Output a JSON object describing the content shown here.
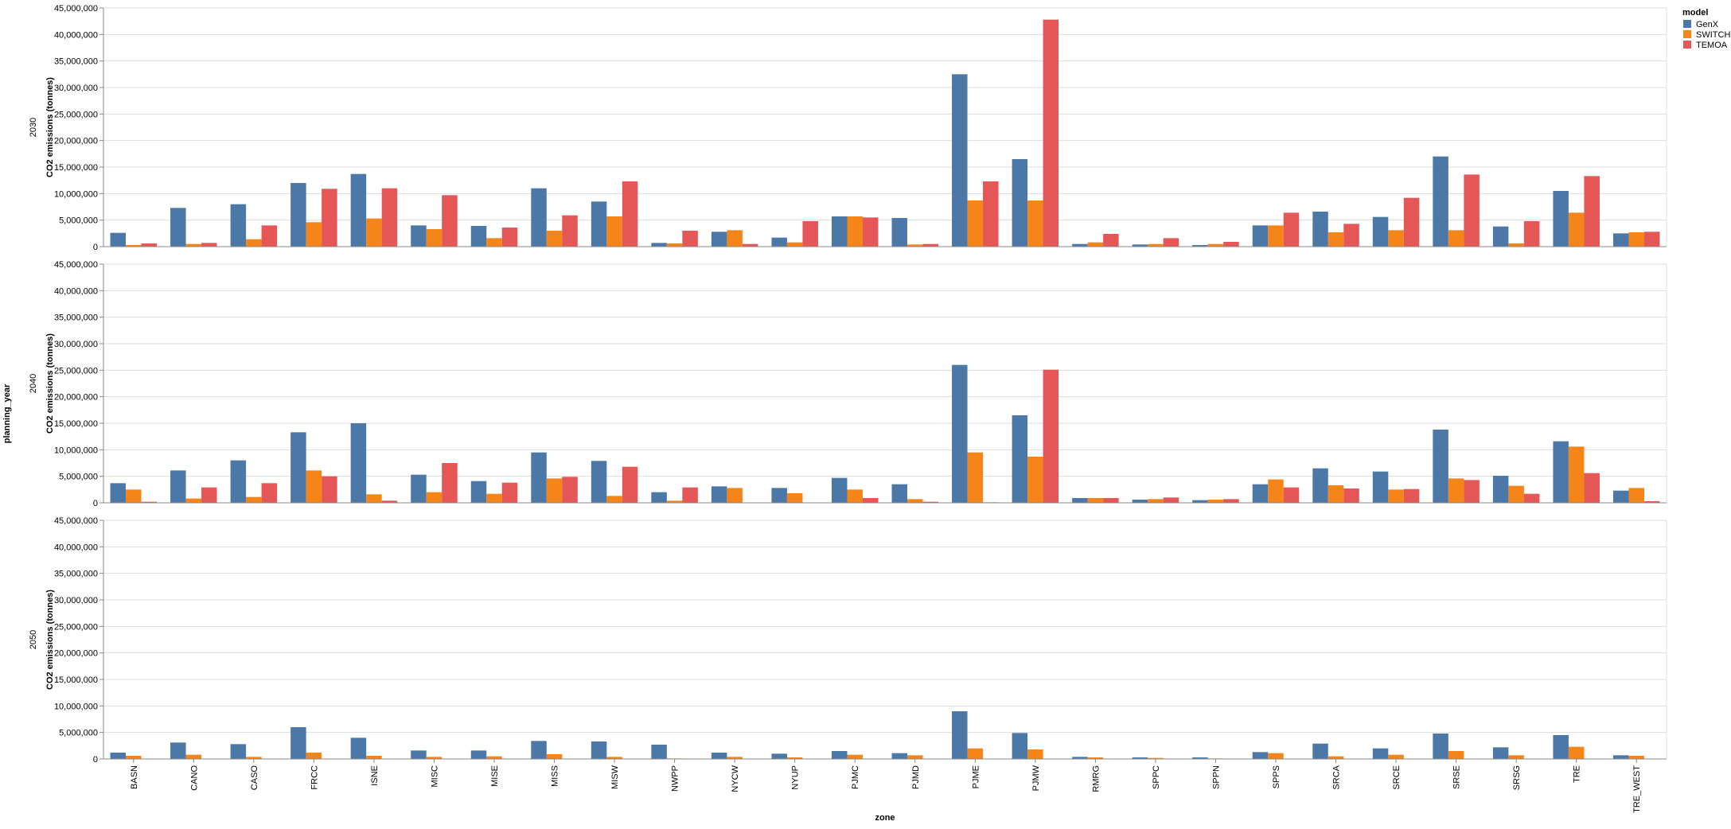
{
  "chart_data": {
    "type": "bar",
    "facet_title": "planning_year",
    "facets": [
      "2030",
      "2040",
      "2050"
    ],
    "xlabel": "zone",
    "ylabel": "CO2 emissions (tonnes)",
    "ylim": [
      0,
      45000000
    ],
    "yticks": [
      0,
      5000000,
      10000000,
      15000000,
      20000000,
      25000000,
      30000000,
      35000000,
      40000000,
      45000000
    ],
    "ytick_labels": [
      "0",
      "5,000,000",
      "10,000,000",
      "15,000,000",
      "20,000,000",
      "25,000,000",
      "30,000,000",
      "35,000,000",
      "40,000,000",
      "45,000,000"
    ],
    "grid": true,
    "legend": {
      "title": "model",
      "placement": "top-right"
    },
    "categories": [
      "BASN",
      "CANO",
      "CASO",
      "FRCC",
      "ISNE",
      "MISC",
      "MISE",
      "MISS",
      "MISW",
      "NWPP",
      "NYCW",
      "NYUP",
      "PJMC",
      "PJMD",
      "PJME",
      "PJMW",
      "RMRG",
      "SPPC",
      "SPPN",
      "SPPS",
      "SRCA",
      "SRCE",
      "SRSE",
      "SRSG",
      "TRE",
      "TRE_WEST"
    ],
    "series": [
      {
        "name": "GenX",
        "color": "#4c78a8",
        "values_by_facet": {
          "2030": [
            2600000,
            7300000,
            8000000,
            12000000,
            13700000,
            4000000,
            3900000,
            11000000,
            8500000,
            700000,
            2800000,
            1700000,
            5700000,
            5400000,
            32500000,
            16500000,
            500000,
            400000,
            300000,
            4000000,
            6600000,
            5600000,
            17000000,
            3800000,
            10500000,
            2500000
          ],
          "2040": [
            3700000,
            6100000,
            8000000,
            13300000,
            15000000,
            5300000,
            4100000,
            9500000,
            7900000,
            2000000,
            3100000,
            2800000,
            4700000,
            3500000,
            26000000,
            16500000,
            900000,
            600000,
            500000,
            3500000,
            6500000,
            5900000,
            13800000,
            5100000,
            11600000,
            2300000
          ],
          "2050": [
            1200000,
            3100000,
            2800000,
            6000000,
            4000000,
            1600000,
            1600000,
            3400000,
            3300000,
            2700000,
            1200000,
            1000000,
            1500000,
            1100000,
            9000000,
            4900000,
            400000,
            300000,
            300000,
            1300000,
            2900000,
            2000000,
            4800000,
            2200000,
            4500000,
            700000
          ]
        }
      },
      {
        "name": "SWITCH",
        "color": "#f58518",
        "values_by_facet": {
          "2030": [
            300000,
            500000,
            1400000,
            4600000,
            5300000,
            3300000,
            1600000,
            3000000,
            5700000,
            600000,
            3100000,
            800000,
            5700000,
            400000,
            8700000,
            8700000,
            800000,
            500000,
            500000,
            4000000,
            2700000,
            3100000,
            3100000,
            600000,
            6400000,
            2700000
          ],
          "2040": [
            2500000,
            800000,
            1100000,
            6100000,
            1600000,
            2000000,
            1700000,
            4600000,
            1300000,
            400000,
            2800000,
            1800000,
            2500000,
            700000,
            9500000,
            8700000,
            900000,
            700000,
            600000,
            4400000,
            3300000,
            2500000,
            4600000,
            3200000,
            10600000,
            2800000
          ],
          "2050": [
            600000,
            800000,
            400000,
            1200000,
            600000,
            400000,
            500000,
            900000,
            400000,
            100000,
            400000,
            300000,
            800000,
            700000,
            2000000,
            1800000,
            300000,
            200000,
            100000,
            1100000,
            500000,
            800000,
            1500000,
            700000,
            2300000,
            600000
          ]
        }
      },
      {
        "name": "TEMOA",
        "color": "#e45756",
        "values_by_facet": {
          "2030": [
            600000,
            700000,
            4000000,
            10900000,
            11000000,
            9700000,
            3600000,
            5900000,
            12300000,
            3000000,
            500000,
            4800000,
            5500000,
            500000,
            12300000,
            42800000,
            2400000,
            1600000,
            900000,
            6400000,
            4300000,
            9200000,
            13600000,
            4800000,
            13300000,
            2800000
          ],
          "2040": [
            200000,
            2900000,
            3700000,
            5000000,
            400000,
            7500000,
            3800000,
            4900000,
            6800000,
            2900000,
            0,
            0,
            900000,
            200000,
            100000,
            25100000,
            900000,
            1000000,
            700000,
            2900000,
            2700000,
            2600000,
            4300000,
            1700000,
            5600000,
            300000
          ],
          "2050": [
            0,
            0,
            0,
            0,
            0,
            0,
            0,
            0,
            0,
            0,
            0,
            0,
            0,
            0,
            0,
            0,
            0,
            0,
            0,
            0,
            0,
            0,
            0,
            0,
            0,
            0
          ]
        }
      }
    ]
  }
}
